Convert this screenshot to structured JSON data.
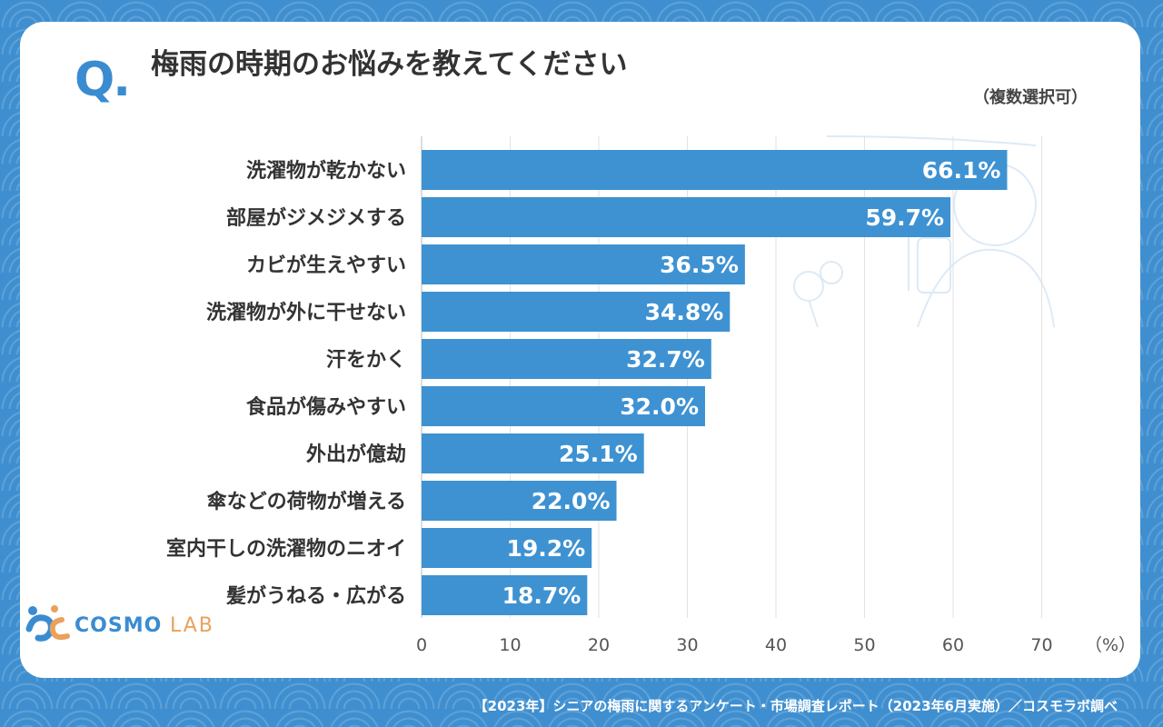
{
  "question": {
    "mark": "Q.",
    "text": "梅雨の時期のお悩みを教えてください"
  },
  "note": "（複数選択可）",
  "unit_label": "（%）",
  "brand": {
    "name": "COSMO",
    "suffix": "LAB"
  },
  "footer": "【2023年】シニアの梅雨に関するアンケート・市場調査レポート（2023年6月実施）／コスモラボ調べ",
  "colors": {
    "bar": "#3e92d2",
    "background": "#3f8fd0",
    "accent": "#3a8cd0",
    "brand_orange": "#e9a15c"
  },
  "chart_data": {
    "type": "bar",
    "orientation": "horizontal",
    "categories": [
      "洗濯物が乾かない",
      "部屋がジメジメする",
      "カビが生えやすい",
      "洗濯物が外に干せない",
      "汗をかく",
      "食品が傷みやすい",
      "外出が億劫",
      "傘などの荷物が増える",
      "室内干しの洗濯物のニオイ",
      "髪がうねる・広がる"
    ],
    "values": [
      66.1,
      59.7,
      36.5,
      34.8,
      32.7,
      32.0,
      25.1,
      22.0,
      19.2,
      18.7
    ],
    "value_labels": [
      "66.1%",
      "59.7%",
      "36.5%",
      "34.8%",
      "32.7%",
      "32.0%",
      "25.1%",
      "22.0%",
      "19.2%",
      "18.7%"
    ],
    "xlim": [
      0,
      70
    ],
    "xticks": [
      0,
      10,
      20,
      30,
      40,
      50,
      60,
      70
    ],
    "grid": true
  }
}
